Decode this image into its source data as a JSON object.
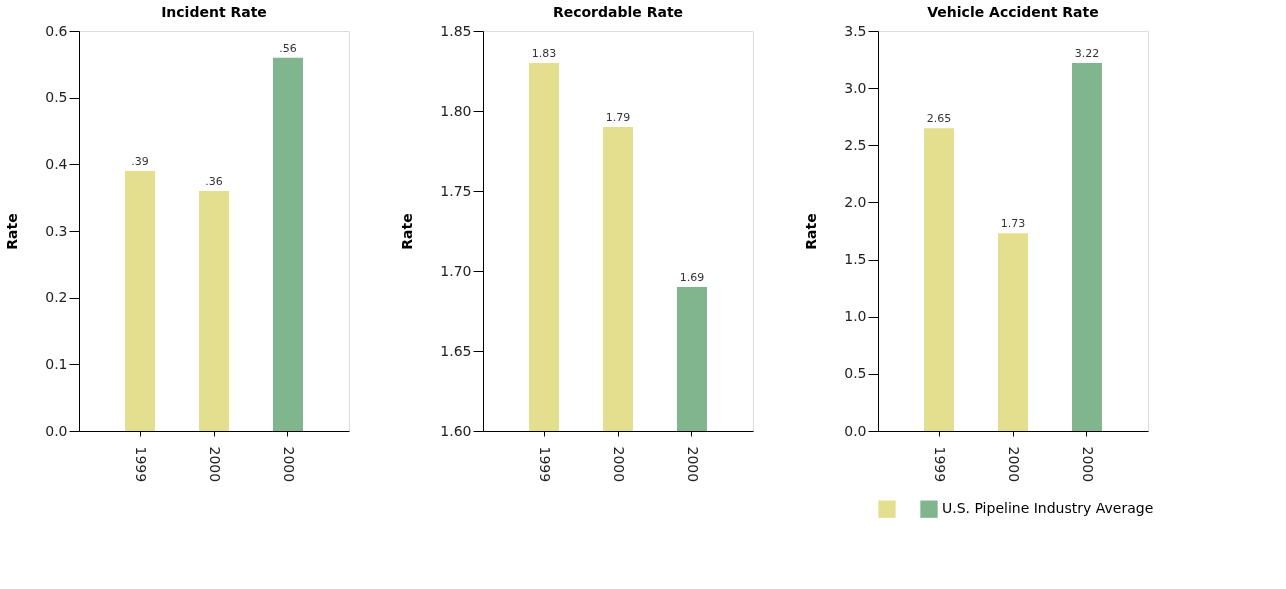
{
  "chart_data": [
    {
      "type": "bar",
      "title": "Incident Rate",
      "ylabel": "Rate",
      "categories": [
        "1999",
        "2000",
        "2000"
      ],
      "series": [
        {
          "name": null,
          "color": "#e3df8f",
          "values": [
            0.39,
            0.36,
            null
          ],
          "value_labels": [
            ".39",
            ".36",
            null
          ]
        },
        {
          "name": null,
          "color": "#80b58e",
          "values": [
            null,
            null,
            0.56
          ],
          "value_labels": [
            null,
            null,
            ".56"
          ]
        }
      ],
      "ylim": [
        0,
        0.6
      ],
      "yticks": [
        {
          "value": 0,
          "label": "0.0"
        },
        0.1,
        0.2,
        0.3,
        0.4,
        0.5,
        0.6
      ],
      "grid": false
    },
    {
      "type": "bar",
      "title": "Recordable Rate",
      "ylabel": "Rate",
      "categories": [
        "1999",
        "2000",
        "2000"
      ],
      "series": [
        {
          "name": null,
          "color": "#e3df8f",
          "values": [
            1.83,
            1.79,
            null
          ]
        },
        {
          "name": null,
          "color": "#80b58e",
          "values": [
            null,
            null,
            1.69
          ]
        }
      ],
      "data_labels": true,
      "ylim": [
        1.6,
        1.85
      ],
      "yticks": [
        {
          "value": 1.6,
          "label": "1.60"
        },
        1.65,
        {
          "value": 1.7,
          "label": "1.70"
        },
        1.75,
        {
          "value": 1.8,
          "label": "1.80"
        },
        1.85
      ],
      "grid": false
    },
    {
      "type": "bar",
      "title": "Vehicle Accident Rate",
      "ylabel": "Rate",
      "categories": [
        "1999",
        "2000",
        "2000"
      ],
      "series": [
        {
          "name": null,
          "color": "#e3df8f",
          "values": [
            2.65,
            1.73,
            null
          ]
        },
        {
          "name": "U.S. Pipeline Industry Average",
          "color": "#80b58e",
          "values": [
            null,
            null,
            3.22
          ]
        }
      ],
      "data_labels": true,
      "ylim": [
        0,
        3.5
      ],
      "yticks": [
        {
          "value": 0,
          "label": "0.0"
        },
        0.5,
        {
          "value": 1,
          "label": "1.0"
        },
        1.5,
        {
          "value": 2,
          "label": "2.0"
        },
        2.5,
        {
          "value": 3,
          "label": "3.0"
        },
        3.5
      ],
      "grid": false,
      "legend": "bottom"
    }
  ]
}
